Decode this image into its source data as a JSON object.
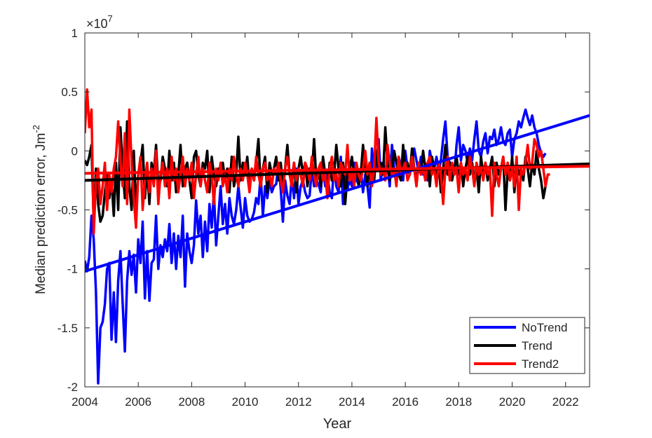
{
  "chart_data": {
    "type": "line",
    "title": "",
    "xlabel": "Year",
    "ylabel_main": "Median prediction error, Jm",
    "ylabel_sup": "-2",
    "exponent_label": {
      "times": "×10",
      "power": "7"
    },
    "xlim": [
      2004,
      2022.9
    ],
    "ylim": [
      -2,
      1
    ],
    "xticks": [
      2004,
      2006,
      2008,
      2010,
      2012,
      2014,
      2016,
      2018,
      2020,
      2022
    ],
    "yticks": [
      -2,
      -1.5,
      -1,
      -0.5,
      0,
      0.5,
      1
    ],
    "ytick_labels": [
      "-2",
      "-1.5",
      "-1",
      "-0.5",
      "0",
      "0.5",
      "1"
    ],
    "grid": false,
    "legend_position": "bottom-right",
    "colors": {
      "NoTrend": "#0000ff",
      "Trend": "#000000",
      "Trend2": "#ff0000"
    },
    "series": [
      {
        "name": "NoTrend",
        "color": "#0000ff",
        "x_start": 2004.0,
        "x_step": 0.083333,
        "values": [
          -0.93,
          -1.02,
          -0.9,
          -0.55,
          -0.75,
          -1.2,
          -1.97,
          -1.5,
          -1.45,
          -1.3,
          -1.0,
          -0.95,
          -1.6,
          -1.2,
          -1.62,
          -1.1,
          -0.85,
          -1.3,
          -1.7,
          -1.1,
          -0.85,
          -1.05,
          -0.88,
          -1.2,
          -0.75,
          -0.95,
          -0.6,
          -1.25,
          -0.85,
          -1.27,
          -0.95,
          -0.92,
          -0.55,
          -1.0,
          -0.8,
          -0.9,
          -0.75,
          -0.85,
          -0.62,
          -0.95,
          -0.7,
          -1.0,
          -0.72,
          -0.9,
          -0.55,
          -1.15,
          -0.7,
          -0.85,
          -0.95,
          -0.8,
          -0.42,
          -0.7,
          -0.55,
          -0.9,
          -0.6,
          -0.85,
          -0.45,
          -0.65,
          -0.35,
          -0.8,
          -0.55,
          -0.3,
          -0.62,
          -0.45,
          -0.7,
          -0.4,
          -0.55,
          -0.62,
          -0.5,
          -0.3,
          -0.48,
          -0.65,
          -0.4,
          -0.55,
          -0.6,
          -0.58,
          -0.52,
          -0.4,
          -0.45,
          -0.2,
          -0.55,
          -0.3,
          -0.4,
          -0.25,
          -0.35,
          -0.3,
          -0.28,
          -0.1,
          -0.32,
          -0.6,
          -0.25,
          -0.38,
          -0.45,
          -0.22,
          -0.4,
          -0.15,
          -0.45,
          -0.3,
          -0.25,
          -0.35,
          -0.4,
          -0.38,
          -0.15,
          -0.3,
          -0.25,
          -0.28,
          -0.35,
          -0.12,
          -0.3,
          -0.2,
          -0.35,
          -0.4,
          -0.1,
          -0.3,
          -0.35,
          -0.05,
          -0.45,
          -0.15,
          -0.32,
          -0.25,
          -0.3,
          -0.1,
          -0.25,
          -0.28,
          -0.15,
          -0.35,
          -0.2,
          -0.3,
          -0.48,
          0.02,
          -0.2,
          -0.12,
          0.1,
          -0.25,
          -0.1,
          -0.18,
          -0.12,
          -0.3,
          0.05,
          -0.15,
          -0.2,
          -0.05,
          -0.12,
          -0.25,
          0.0,
          -0.15,
          -0.2,
          -0.1,
          0.02,
          -0.08,
          -0.18,
          -0.05,
          -0.2,
          -0.12,
          -0.25,
          0.0,
          -0.1,
          -0.15,
          -0.05,
          -0.18,
          -0.08,
          0.1,
          0.25,
          -0.05,
          -0.1,
          -0.15,
          -0.2,
          0.05,
          0.2,
          -0.08,
          0.05,
          0.0,
          -0.1,
          0.02,
          -0.08,
          0.1,
          0.25,
          0.0,
          -0.05,
          0.08,
          0.15,
          -0.02,
          0.12,
          0.1,
          0.18,
          0.05,
          0.1,
          0.2,
          0.08,
          0.05,
          0.15,
          0.18,
          -0.05,
          0.1,
          0.15,
          0.25,
          0.2,
          0.28,
          0.35,
          0.28,
          0.22,
          0.3,
          0.2,
          0.15,
          0.05,
          -0.02,
          -0.05,
          -0.02
        ]
      },
      {
        "name": "Trend",
        "color": "#000000",
        "x_start": 2004.0,
        "x_step": 0.083333,
        "values": [
          -0.08,
          -0.12,
          -0.05,
          0.05,
          -0.6,
          -0.15,
          -0.45,
          -0.6,
          -0.55,
          -0.35,
          -0.2,
          -0.4,
          -0.25,
          -0.55,
          -0.1,
          -0.5,
          0.2,
          -0.15,
          -0.4,
          0.25,
          -0.3,
          -0.5,
          0.0,
          -0.5,
          -0.2,
          -0.1,
          0.05,
          -0.4,
          -0.15,
          -0.45,
          -0.1,
          -0.2,
          0.05,
          -0.3,
          -0.25,
          -0.05,
          -0.15,
          -0.3,
          0.0,
          -0.25,
          -0.1,
          -0.35,
          -0.2,
          0.05,
          -0.3,
          -0.15,
          -0.1,
          -0.25,
          -0.4,
          -0.05,
          0.0,
          -0.2,
          -0.3,
          -0.1,
          -0.15,
          0.0,
          -0.35,
          -0.05,
          -0.2,
          -0.3,
          -0.15,
          -0.2,
          -0.1,
          -0.25,
          -0.15,
          -0.35,
          -0.05,
          -0.3,
          -0.2,
          0.12,
          -0.25,
          -0.1,
          -0.2,
          -0.05,
          -0.3,
          -0.15,
          -0.25,
          -0.1,
          0.1,
          -0.3,
          -0.15,
          -0.05,
          -0.35,
          -0.1,
          -0.2,
          -0.15,
          -0.05,
          -0.25,
          -0.1,
          -0.3,
          -0.15,
          0.05,
          -0.2,
          -0.25,
          -0.1,
          -0.35,
          -0.15,
          -0.05,
          -0.2,
          -0.1,
          -0.3,
          -0.15,
          -0.2,
          0.1,
          -0.25,
          -0.15,
          -0.3,
          -0.05,
          -0.2,
          -0.35,
          -0.1,
          -0.25,
          -0.2,
          0.05,
          -0.15,
          -0.3,
          -0.1,
          -0.45,
          -0.2,
          -0.15,
          -0.05,
          -0.25,
          -0.1,
          -0.3,
          -0.2,
          0.05,
          -0.15,
          -0.3,
          -0.1,
          -0.2,
          -0.25,
          0.0,
          -0.15,
          -0.1,
          -0.2,
          0.2,
          -0.1,
          -0.25,
          -0.15,
          0.0,
          -0.1,
          -0.2,
          -0.25,
          0.05,
          -0.15,
          -0.1,
          -0.2,
          0.02,
          -0.15,
          -0.25,
          -0.1,
          -0.2,
          0.0,
          -0.15,
          -0.1,
          -0.3,
          -0.05,
          -0.15,
          -0.2,
          -0.1,
          -0.35,
          -0.15,
          0.05,
          -0.2,
          -0.1,
          -0.25,
          -0.15,
          -0.05,
          -0.2,
          -0.1,
          -0.3,
          -0.15,
          -0.05,
          -0.2,
          -0.1,
          -0.25,
          -0.15,
          -0.35,
          -0.05,
          -0.2,
          -0.1,
          -0.25,
          -0.15,
          -0.05,
          -0.3,
          -0.1,
          -0.2,
          -0.15,
          -0.05,
          -0.5,
          -0.15,
          -0.25,
          -0.05,
          -0.35,
          -0.1,
          -0.2,
          -0.15,
          -0.25,
          -0.05,
          -0.15,
          -0.3,
          -0.1,
          -0.2,
          0.0,
          -0.15,
          -0.25,
          -0.4,
          -0.3
        ]
      },
      {
        "name": "Trend2",
        "color": "#ff0000",
        "x_start": 2004.0,
        "x_step": 0.083333,
        "values": [
          0.15,
          0.52,
          0.2,
          0.35,
          -0.7,
          -0.25,
          -0.15,
          -0.45,
          -0.3,
          -0.1,
          -0.5,
          -0.2,
          -0.35,
          -0.15,
          -0.05,
          0.25,
          -0.1,
          -0.3,
          0.15,
          -0.45,
          0.35,
          -0.1,
          -0.4,
          -0.65,
          -0.2,
          -0.05,
          -0.5,
          -0.25,
          -0.1,
          -0.35,
          -0.15,
          -0.3,
          0.0,
          -0.45,
          -0.2,
          -0.1,
          -0.3,
          -0.15,
          -0.4,
          -0.05,
          -0.25,
          -0.15,
          -0.35,
          -0.2,
          -0.05,
          -0.3,
          -0.15,
          -0.25,
          -0.1,
          -0.4,
          -0.2,
          -0.05,
          -0.3,
          -0.15,
          -0.25,
          -0.35,
          -0.1,
          -0.2,
          -0.45,
          -0.15,
          -0.25,
          -0.1,
          -0.3,
          -0.2,
          -0.35,
          -0.15,
          -0.25,
          -0.05,
          -0.2,
          -0.3,
          -0.15,
          -0.25,
          -0.1,
          -0.2,
          -0.35,
          -0.15,
          -0.25,
          -0.05,
          -0.2,
          -0.3,
          -0.15,
          -0.1,
          -0.25,
          -0.2,
          -0.3,
          -0.15,
          -0.2,
          -0.1,
          -0.25,
          -0.35,
          -0.15,
          -0.05,
          -0.2,
          -0.3,
          -0.1,
          -0.25,
          -0.15,
          -0.2,
          -0.3,
          -0.1,
          -0.15,
          -0.25,
          -0.05,
          -0.2,
          -0.3,
          -0.15,
          -0.1,
          -0.25,
          -0.2,
          -0.4,
          -0.15,
          -0.05,
          -0.25,
          -0.2,
          -0.3,
          -0.1,
          -0.15,
          -0.2,
          0.05,
          -0.25,
          -0.15,
          -0.3,
          -0.1,
          -0.2,
          -0.25,
          -0.15,
          0.0,
          -0.2,
          -0.1,
          -0.3,
          -0.15,
          0.28,
          -0.1,
          -0.2,
          -0.15,
          -0.25,
          0.05,
          -0.1,
          -0.2,
          -0.15,
          -0.3,
          -0.05,
          -0.2,
          -0.15,
          -0.1,
          -0.25,
          -0.2,
          -0.05,
          -0.15,
          -0.3,
          -0.1,
          -0.2,
          -0.15,
          -0.25,
          -0.1,
          -0.05,
          -0.2,
          -0.15,
          -0.3,
          -0.1,
          -0.2,
          -0.45,
          -0.15,
          -0.05,
          -0.25,
          -0.1,
          -0.2,
          -0.15,
          -0.35,
          -0.1,
          -0.2,
          -0.15,
          -0.25,
          -0.05,
          -0.15,
          -0.3,
          -0.1,
          -0.2,
          -0.15,
          -0.25,
          -0.1,
          -0.2,
          -0.15,
          -0.55,
          -0.1,
          -0.2,
          -0.3,
          -0.15,
          -0.05,
          -0.2,
          -0.1,
          -0.25,
          -0.15,
          -0.3,
          -0.05,
          -0.5,
          -0.15,
          -0.2,
          -0.1,
          0.05,
          -0.15,
          -0.1,
          0.1,
          0.05,
          -0.05,
          0.0,
          -0.15,
          -0.3,
          -0.2,
          -0.2
        ]
      }
    ],
    "trend_lines": [
      {
        "name": "NoTrend",
        "color": "#0000ff",
        "x": [
          2004.0,
          2022.9
        ],
        "y": [
          -1.02,
          0.3
        ]
      },
      {
        "name": "Trend",
        "color": "#000000",
        "x": [
          2004.0,
          2022.9
        ],
        "y": [
          -0.25,
          -0.11
        ]
      },
      {
        "name": "Trend2",
        "color": "#ff0000",
        "x": [
          2004.0,
          2022.9
        ],
        "y": [
          -0.19,
          -0.13
        ]
      }
    ]
  }
}
